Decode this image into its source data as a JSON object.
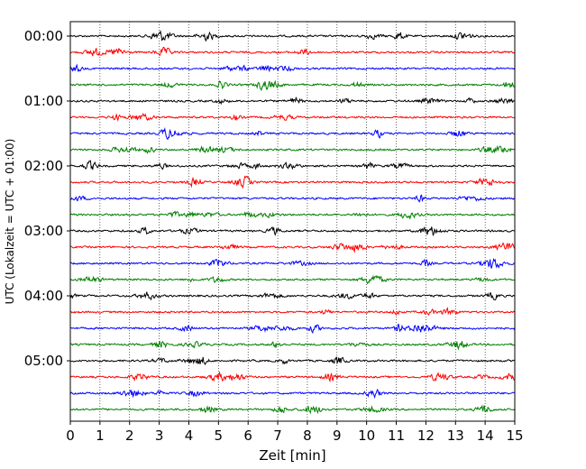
{
  "chart_data": {
    "type": "line",
    "title": "",
    "xlabel": "Zeit  [min]",
    "ylabel": "UTC (Lokalzeit = UTC + 01:00)",
    "xlim": [
      0,
      15
    ],
    "x_ticks": [
      "0",
      "1",
      "2",
      "3",
      "4",
      "5",
      "6",
      "7",
      "8",
      "9",
      "10",
      "11",
      "12",
      "13",
      "14",
      "15"
    ],
    "y_ticks": [
      {
        "label": "00:00",
        "row": 0
      },
      {
        "label": "01:00",
        "row": 4
      },
      {
        "label": "02:00",
        "row": 8
      },
      {
        "label": "03:00",
        "row": 12
      },
      {
        "label": "04:00",
        "row": 16
      },
      {
        "label": "05:00",
        "row": 20
      }
    ],
    "trace_count": 24,
    "trace_interval_min": 15,
    "colors": [
      "#000000",
      "#ff0000",
      "#0000ff",
      "#008000"
    ],
    "grid": {
      "x": true,
      "style": "dotted"
    },
    "legend": "none"
  }
}
